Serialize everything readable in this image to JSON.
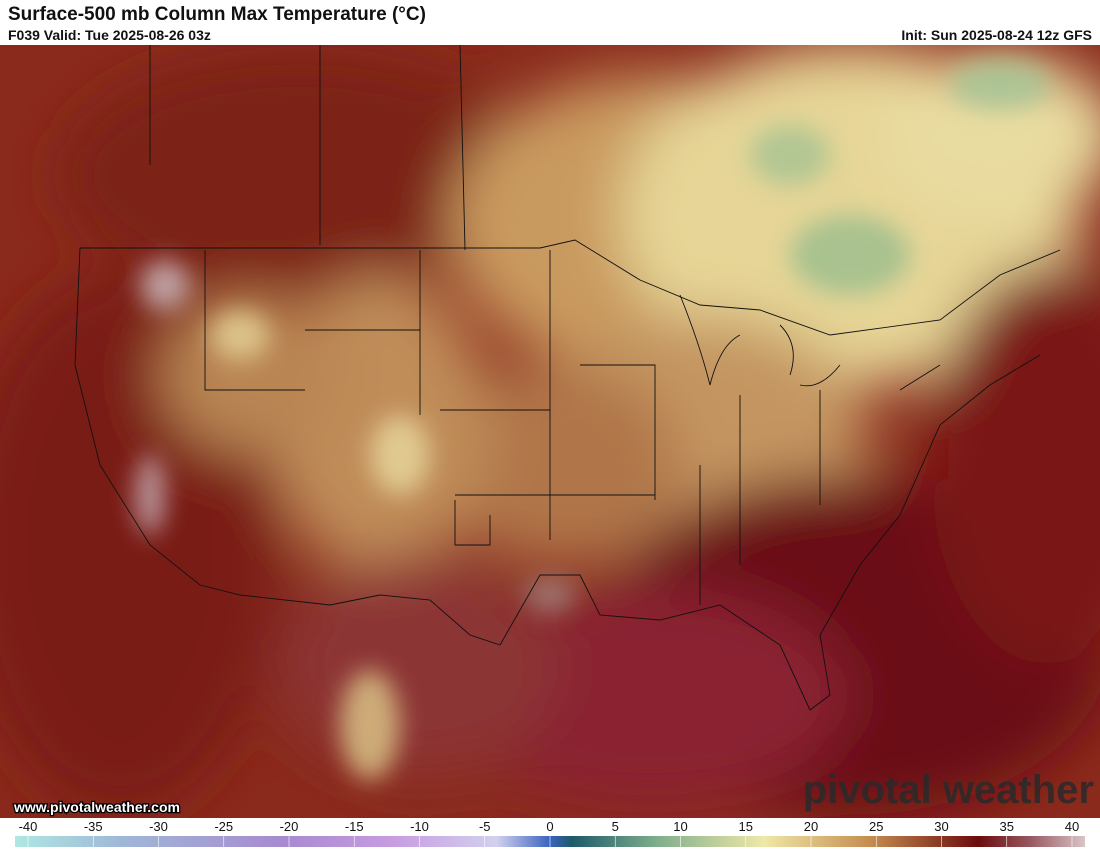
{
  "header": {
    "title": "Surface-500 mb Column Max Temperature (°C)",
    "valid": "F039 Valid: Tue 2025-08-26 03z",
    "init": "Init: Sun 2025-08-24 12z GFS"
  },
  "map": {
    "website": "www.pivotalweather.com",
    "watermark": "pivotal weather"
  },
  "colorbar": {
    "ticks": [
      -40,
      -35,
      -30,
      -25,
      -20,
      -15,
      -10,
      -5,
      0,
      5,
      10,
      15,
      20,
      25,
      30,
      35,
      40
    ]
  }
}
